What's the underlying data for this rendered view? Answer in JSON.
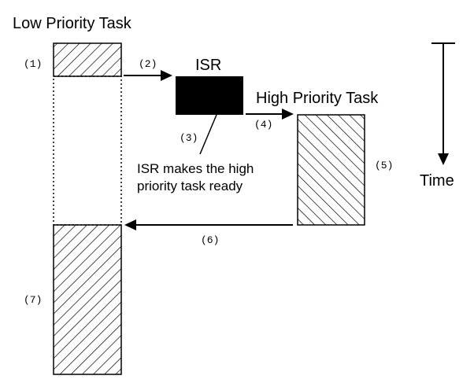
{
  "title": "Low Priority Task",
  "isr": {
    "label": "ISR",
    "note_line1": "ISR makes the high",
    "note_line2": "priority task ready"
  },
  "high_task": {
    "label": "High Priority Task"
  },
  "time_label": "Time",
  "steps": {
    "s1": "(1)",
    "s2": "(2)",
    "s3": "(3)",
    "s4": "(4)",
    "s5": "(5)",
    "s6": "(6)",
    "s7": "(7)"
  }
}
